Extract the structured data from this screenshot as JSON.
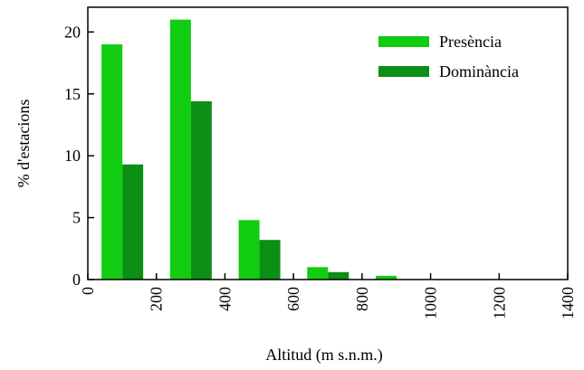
{
  "chart_data": {
    "type": "bar",
    "xlabel": "Altitud (m s.n.m.)",
    "ylabel": "% d'estacions",
    "xlim": [
      0,
      1400
    ],
    "ylim": [
      0,
      22
    ],
    "x_ticks": [
      "0",
      "200",
      "400",
      "600",
      "800",
      "1000",
      "1200",
      "1400"
    ],
    "y_ticks": [
      "0",
      "5",
      "10",
      "15",
      "20"
    ],
    "bin_width": 200,
    "grid": false,
    "legend_position": "top-right",
    "series": [
      {
        "name": "Presència",
        "color": "#11cc11",
        "bins": [
          [
            0,
            200
          ],
          [
            200,
            400
          ],
          [
            400,
            600
          ],
          [
            600,
            800
          ],
          [
            800,
            1000
          ]
        ],
        "values": [
          19,
          21,
          4.8,
          1.0,
          0.3
        ]
      },
      {
        "name": "Dominància",
        "color": "#0b8f14",
        "bins": [
          [
            0,
            200
          ],
          [
            200,
            400
          ],
          [
            400,
            600
          ],
          [
            600,
            800
          ],
          [
            800,
            1000
          ]
        ],
        "values": [
          9.3,
          14.4,
          3.2,
          0.6,
          0
        ]
      }
    ]
  }
}
